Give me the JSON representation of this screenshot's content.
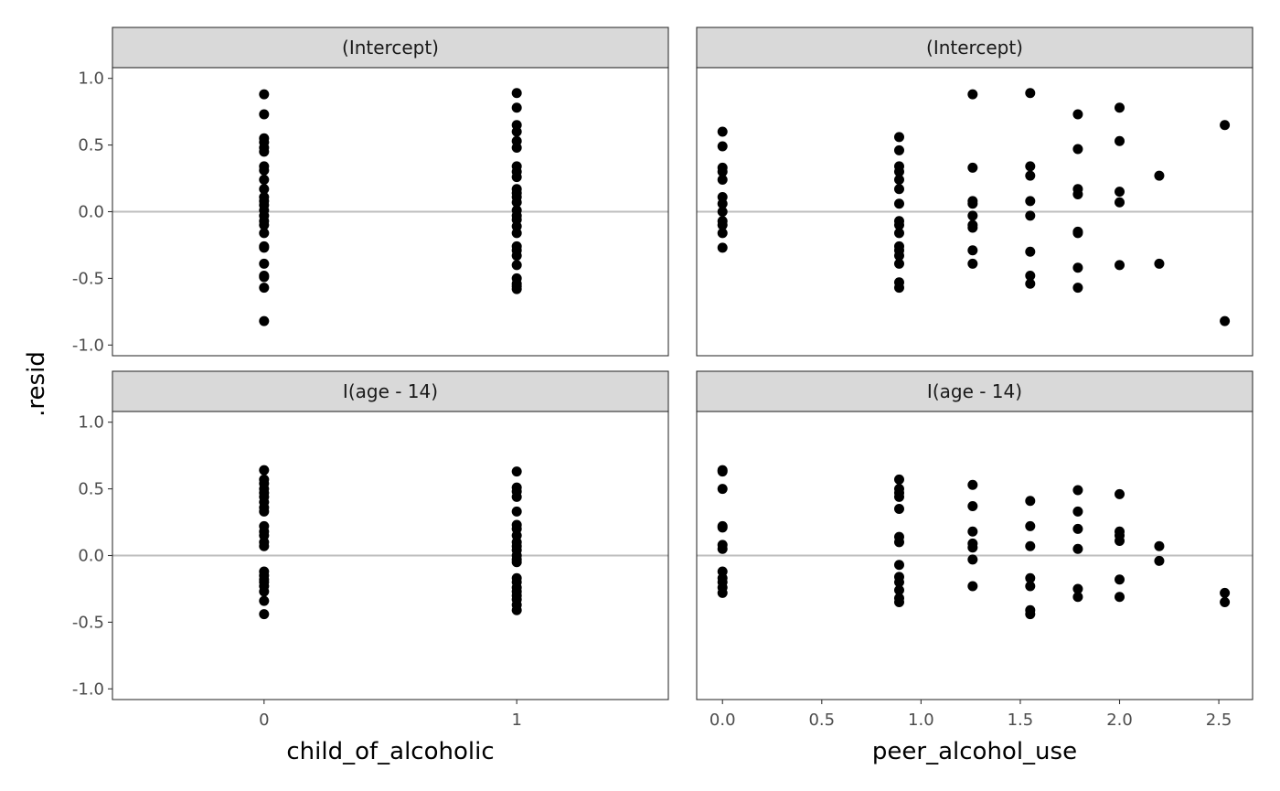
{
  "chart_data": {
    "type": "scatter",
    "ylabel": ".resid",
    "ylim": [
      -1.08,
      1.08
    ],
    "y_ticks": [
      -1.0,
      -0.5,
      0.0,
      0.5,
      1.0
    ],
    "y_tick_labels": [
      "-1.0",
      "-0.5",
      "0.0",
      "0.5",
      "1.0"
    ],
    "reference_line_y": 0,
    "hline_color": "#bebebe",
    "point_color": "#000000",
    "grid": false,
    "columns": [
      {
        "xlabel": "child_of_alcoholic",
        "xlim": [
          -0.6,
          1.6
        ],
        "x_ticks": [
          0,
          1
        ],
        "x_tick_labels": [
          "0",
          "1"
        ]
      },
      {
        "xlabel": "peer_alcohol_use",
        "xlim": [
          -0.13,
          2.67
        ],
        "x_ticks": [
          0,
          0.5,
          1.0,
          1.5,
          2.0,
          2.5
        ],
        "x_tick_labels": [
          "0.0",
          "0.5",
          "1.0",
          "1.5",
          "2.0",
          "2.5"
        ]
      }
    ],
    "rows": [
      {
        "strip": "(Intercept)"
      },
      {
        "strip": "I(age - 14)"
      }
    ],
    "panels": [
      {
        "row": 0,
        "col": 0,
        "points": [
          [
            0,
            0.88
          ],
          [
            0,
            0.73
          ],
          [
            0,
            0.55
          ],
          [
            0,
            0.52
          ],
          [
            0,
            0.48
          ],
          [
            0,
            0.45
          ],
          [
            0,
            0.34
          ],
          [
            0,
            0.31
          ],
          [
            0,
            0.24
          ],
          [
            0,
            0.17
          ],
          [
            0,
            0.11
          ],
          [
            0,
            0.08
          ],
          [
            0,
            0.05
          ],
          [
            0,
            0.01
          ],
          [
            0,
            -0.03
          ],
          [
            0,
            -0.07
          ],
          [
            0,
            -0.1
          ],
          [
            0,
            -0.16
          ],
          [
            0,
            -0.26
          ],
          [
            0,
            -0.27
          ],
          [
            0,
            -0.39
          ],
          [
            0,
            -0.48
          ],
          [
            0,
            -0.49
          ],
          [
            0,
            -0.57
          ],
          [
            0,
            -0.82
          ],
          [
            1,
            0.89
          ],
          [
            1,
            0.78
          ],
          [
            1,
            0.65
          ],
          [
            1,
            0.6
          ],
          [
            1,
            0.53
          ],
          [
            1,
            0.48
          ],
          [
            1,
            0.34
          ],
          [
            1,
            0.3
          ],
          [
            1,
            0.26
          ],
          [
            1,
            0.17
          ],
          [
            1,
            0.14
          ],
          [
            1,
            0.11
          ],
          [
            1,
            0.07
          ],
          [
            1,
            0.01
          ],
          [
            1,
            -0.03
          ],
          [
            1,
            -0.06
          ],
          [
            1,
            -0.11
          ],
          [
            1,
            -0.16
          ],
          [
            1,
            -0.26
          ],
          [
            1,
            -0.29
          ],
          [
            1,
            -0.33
          ],
          [
            1,
            -0.4
          ],
          [
            1,
            -0.5
          ],
          [
            1,
            -0.54
          ],
          [
            1,
            -0.56
          ],
          [
            1,
            -0.58
          ]
        ]
      },
      {
        "row": 0,
        "col": 1,
        "points": [
          [
            0,
            0.6
          ],
          [
            0,
            0.49
          ],
          [
            0,
            0.33
          ],
          [
            0,
            0.3
          ],
          [
            0,
            0.24
          ],
          [
            0,
            0.11
          ],
          [
            0,
            0.06
          ],
          [
            0,
            0.0
          ],
          [
            0,
            -0.07
          ],
          [
            0,
            -0.1
          ],
          [
            0,
            -0.16
          ],
          [
            0,
            -0.27
          ],
          [
            0.89,
            0.56
          ],
          [
            0.89,
            0.46
          ],
          [
            0.89,
            0.34
          ],
          [
            0.89,
            0.3
          ],
          [
            0.89,
            0.24
          ],
          [
            0.89,
            0.17
          ],
          [
            0.89,
            0.06
          ],
          [
            0.89,
            -0.07
          ],
          [
            0.89,
            -0.1
          ],
          [
            0.89,
            -0.16
          ],
          [
            0.89,
            -0.26
          ],
          [
            0.89,
            -0.29
          ],
          [
            0.89,
            -0.33
          ],
          [
            0.89,
            -0.39
          ],
          [
            0.89,
            -0.53
          ],
          [
            0.89,
            -0.57
          ],
          [
            1.26,
            0.88
          ],
          [
            1.26,
            0.33
          ],
          [
            1.26,
            0.08
          ],
          [
            1.26,
            0.06
          ],
          [
            1.26,
            -0.03
          ],
          [
            1.26,
            -0.1
          ],
          [
            1.26,
            -0.12
          ],
          [
            1.26,
            -0.29
          ],
          [
            1.26,
            -0.39
          ],
          [
            1.55,
            0.89
          ],
          [
            1.55,
            0.34
          ],
          [
            1.55,
            0.27
          ],
          [
            1.55,
            0.08
          ],
          [
            1.55,
            -0.03
          ],
          [
            1.55,
            -0.3
          ],
          [
            1.55,
            -0.48
          ],
          [
            1.55,
            -0.54
          ],
          [
            1.79,
            0.73
          ],
          [
            1.79,
            0.47
          ],
          [
            1.79,
            0.17
          ],
          [
            1.79,
            0.13
          ],
          [
            1.79,
            -0.15
          ],
          [
            1.79,
            -0.16
          ],
          [
            1.79,
            -0.42
          ],
          [
            1.79,
            -0.57
          ],
          [
            2.0,
            0.78
          ],
          [
            2.0,
            0.53
          ],
          [
            2.0,
            0.15
          ],
          [
            2.0,
            0.07
          ],
          [
            2.0,
            -0.4
          ],
          [
            2.2,
            0.27
          ],
          [
            2.2,
            -0.39
          ],
          [
            2.53,
            0.65
          ],
          [
            2.53,
            -0.82
          ]
        ]
      },
      {
        "row": 1,
        "col": 0,
        "points": [
          [
            0,
            0.64
          ],
          [
            0,
            0.57
          ],
          [
            0,
            0.54
          ],
          [
            0,
            0.5
          ],
          [
            0,
            0.47
          ],
          [
            0,
            0.44
          ],
          [
            0,
            0.4
          ],
          [
            0,
            0.36
          ],
          [
            0,
            0.33
          ],
          [
            0,
            0.22
          ],
          [
            0,
            0.18
          ],
          [
            0,
            0.15
          ],
          [
            0,
            0.1
          ],
          [
            0,
            0.07
          ],
          [
            0,
            -0.12
          ],
          [
            0,
            -0.15
          ],
          [
            0,
            -0.18
          ],
          [
            0,
            -0.2
          ],
          [
            0,
            -0.23
          ],
          [
            0,
            -0.27
          ],
          [
            0,
            -0.34
          ],
          [
            0,
            -0.44
          ],
          [
            1,
            0.63
          ],
          [
            1,
            0.51
          ],
          [
            1,
            0.48
          ],
          [
            1,
            0.44
          ],
          [
            1,
            0.33
          ],
          [
            1,
            0.23
          ],
          [
            1,
            0.2
          ],
          [
            1,
            0.15
          ],
          [
            1,
            0.1
          ],
          [
            1,
            0.07
          ],
          [
            1,
            0.04
          ],
          [
            1,
            0.0
          ],
          [
            1,
            -0.03
          ],
          [
            1,
            -0.05
          ],
          [
            1,
            -0.17
          ],
          [
            1,
            -0.2
          ],
          [
            1,
            -0.24
          ],
          [
            1,
            -0.27
          ],
          [
            1,
            -0.3
          ],
          [
            1,
            -0.33
          ],
          [
            1,
            -0.37
          ],
          [
            1,
            -0.41
          ]
        ]
      },
      {
        "row": 1,
        "col": 1,
        "points": [
          [
            0,
            0.64
          ],
          [
            0,
            0.63
          ],
          [
            0,
            0.5
          ],
          [
            0,
            0.22
          ],
          [
            0,
            0.21
          ],
          [
            0,
            0.08
          ],
          [
            0,
            0.05
          ],
          [
            0,
            -0.12
          ],
          [
            0,
            -0.17
          ],
          [
            0,
            -0.2
          ],
          [
            0,
            -0.24
          ],
          [
            0,
            -0.28
          ],
          [
            0.89,
            0.57
          ],
          [
            0.89,
            0.5
          ],
          [
            0.89,
            0.47
          ],
          [
            0.89,
            0.44
          ],
          [
            0.89,
            0.35
          ],
          [
            0.89,
            0.14
          ],
          [
            0.89,
            0.1
          ],
          [
            0.89,
            -0.07
          ],
          [
            0.89,
            -0.16
          ],
          [
            0.89,
            -0.2
          ],
          [
            0.89,
            -0.26
          ],
          [
            0.89,
            -0.32
          ],
          [
            0.89,
            -0.35
          ],
          [
            1.26,
            0.53
          ],
          [
            1.26,
            0.37
          ],
          [
            1.26,
            0.18
          ],
          [
            1.26,
            0.09
          ],
          [
            1.26,
            0.06
          ],
          [
            1.26,
            -0.03
          ],
          [
            1.26,
            -0.23
          ],
          [
            1.55,
            0.41
          ],
          [
            1.55,
            0.22
          ],
          [
            1.55,
            0.07
          ],
          [
            1.55,
            -0.17
          ],
          [
            1.55,
            -0.23
          ],
          [
            1.55,
            -0.41
          ],
          [
            1.55,
            -0.44
          ],
          [
            1.79,
            0.49
          ],
          [
            1.79,
            0.33
          ],
          [
            1.79,
            0.2
          ],
          [
            1.79,
            0.05
          ],
          [
            1.79,
            -0.25
          ],
          [
            1.79,
            -0.31
          ],
          [
            2.0,
            0.46
          ],
          [
            2.0,
            0.18
          ],
          [
            2.0,
            0.15
          ],
          [
            2.0,
            0.11
          ],
          [
            2.0,
            -0.18
          ],
          [
            2.0,
            -0.31
          ],
          [
            2.2,
            0.07
          ],
          [
            2.2,
            -0.04
          ],
          [
            2.53,
            -0.28
          ],
          [
            2.53,
            -0.35
          ]
        ]
      }
    ]
  }
}
